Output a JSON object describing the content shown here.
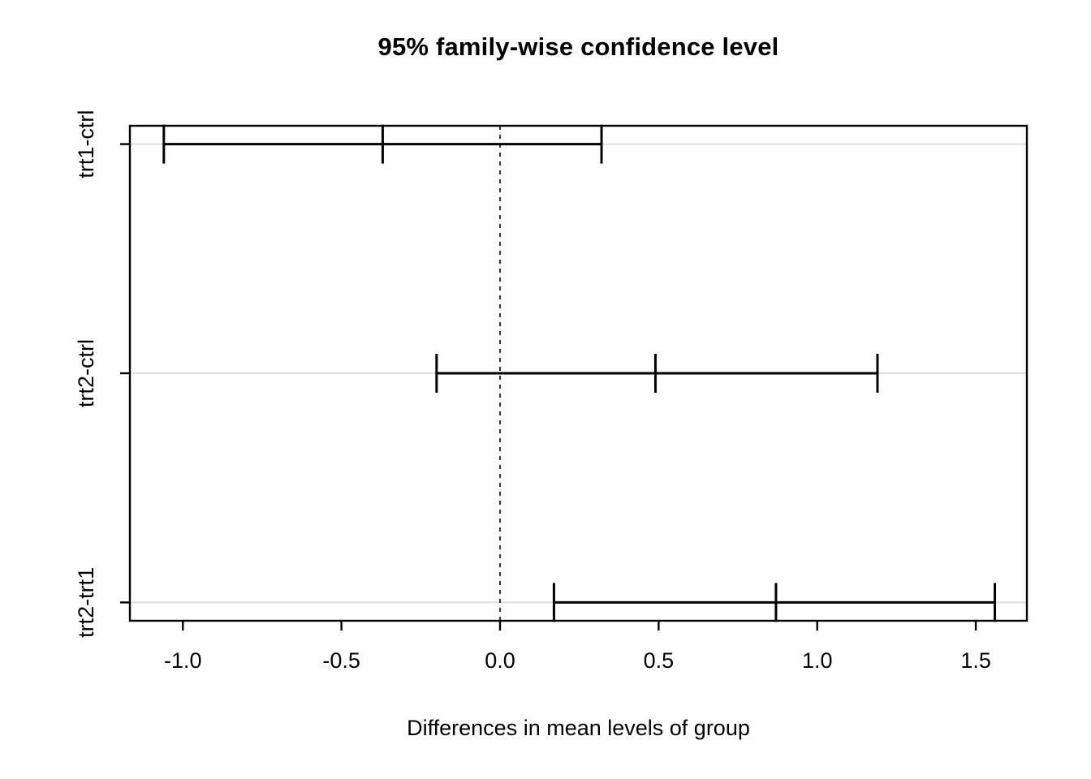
{
  "page": {
    "background": "#ffffff"
  },
  "chart_data": {
    "type": "ci_interval_plot",
    "title": "95% family-wise confidence level",
    "xlabel": "Differences in mean levels of group",
    "ylabel": "",
    "comparisons": [
      {
        "label": "trt1-ctrl",
        "y": 3,
        "lwr": -1.06,
        "diff": -0.37,
        "upr": 0.32
      },
      {
        "label": "trt2-ctrl",
        "y": 2,
        "lwr": -0.2,
        "diff": 0.49,
        "upr": 1.19
      },
      {
        "label": "trt2-trt1",
        "y": 1,
        "lwr": 0.17,
        "diff": 0.87,
        "upr": 1.56
      }
    ],
    "x_ticks": [
      -1.0,
      -0.5,
      0.0,
      0.5,
      1.0,
      1.5
    ],
    "x_tick_labels": [
      "-1.0",
      "-0.5",
      "0.0",
      "0.5",
      "1.0",
      "1.5"
    ],
    "xlim": [
      -1.167,
      1.661
    ],
    "ylim": [
      0.92,
      3.08
    ],
    "reference_line_x": 0,
    "grid": true,
    "legend": "none",
    "colors": {
      "interval": "#000000",
      "gridline": "#dcdcdc",
      "reference_line": "#000000",
      "text": "#000000",
      "background": "#ffffff"
    }
  }
}
